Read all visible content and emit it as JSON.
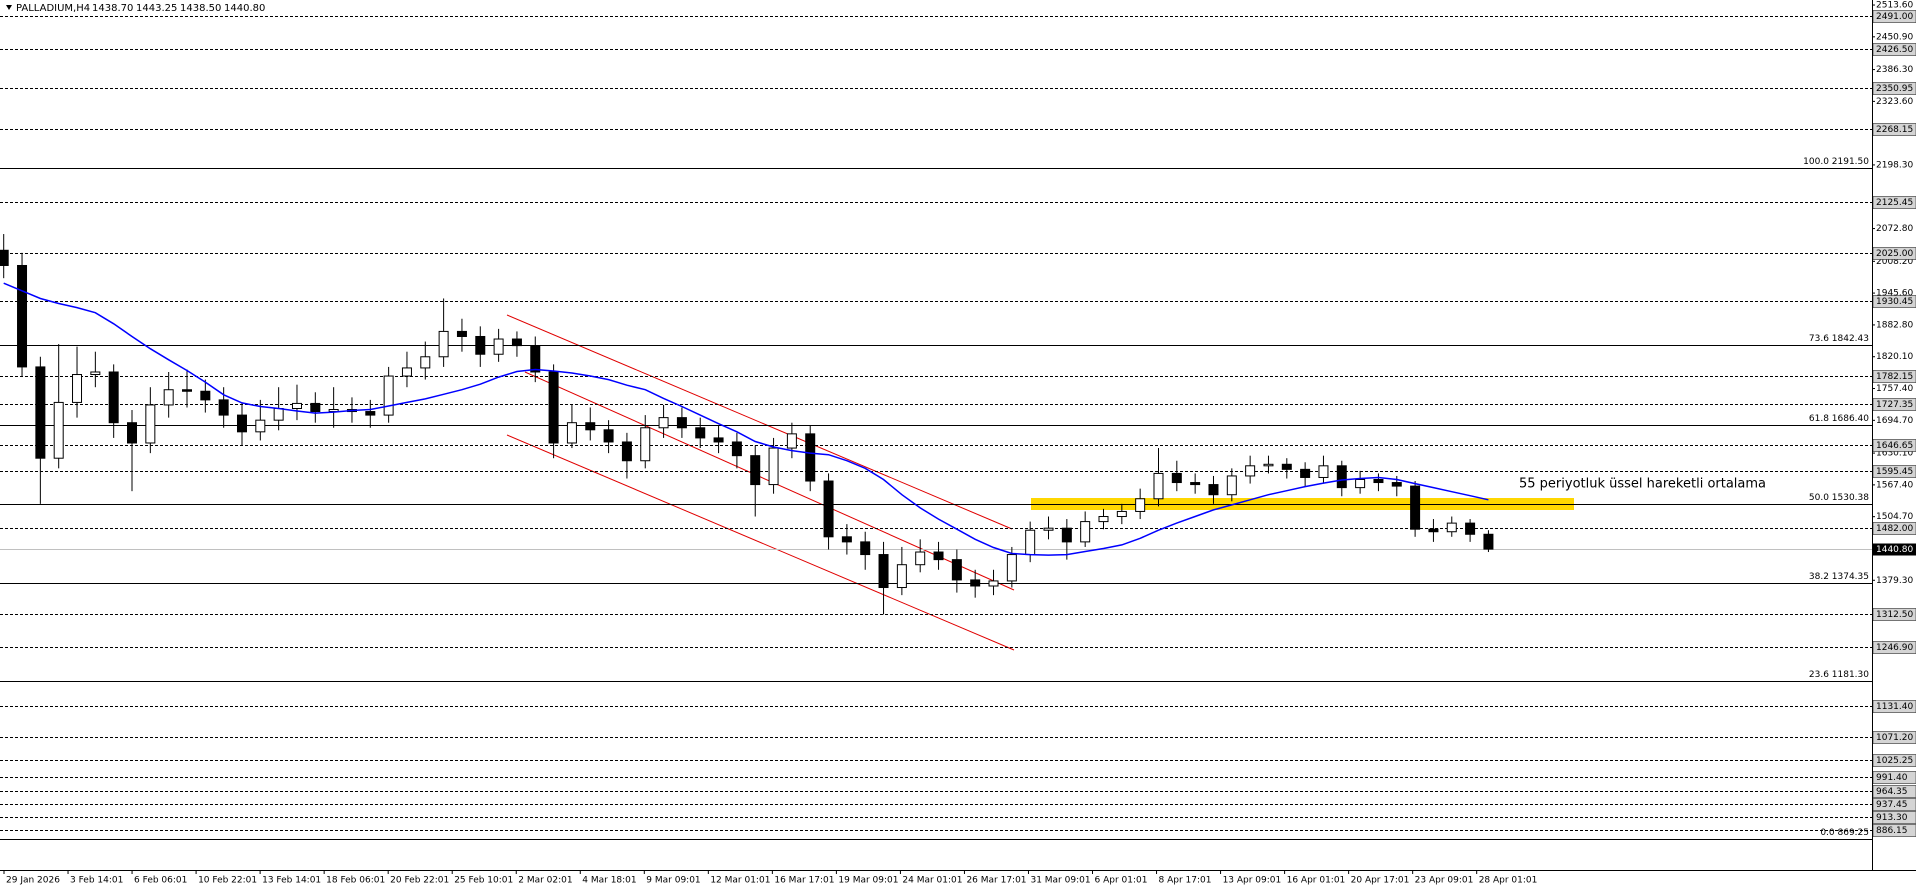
{
  "chart_data": {
    "type": "candlestick",
    "symbol": "PALLADIUM,H4",
    "last_bar": [
      {
        "value": 1438.7,
        "label": "1438.70"
      },
      {
        "value": 1443.25,
        "label": "1443.25"
      },
      {
        "value": 1438.5,
        "label": "1438.50"
      },
      {
        "value": 1440.8,
        "label": "1440.80"
      }
    ],
    "annotation": "55 periyotluk üssel hareketli ortalama",
    "ylim": [
      808,
      2523.5
    ],
    "yticks": [
      {
        "value": 2513.6,
        "label": "2513.60"
      },
      {
        "value": 2450.9,
        "label": "2450.90"
      },
      {
        "value": 2386.3,
        "label": "2386.30"
      },
      {
        "value": 2323.6,
        "label": "2323.60"
      },
      {
        "value": 2198.3,
        "label": "2198.30"
      },
      {
        "value": 2072.8,
        "label": "2072.80"
      },
      {
        "value": 2008.2,
        "label": "2008.20"
      },
      {
        "value": 1945.6,
        "label": "1945.60"
      },
      {
        "value": 1882.8,
        "label": "1882.80"
      },
      {
        "value": 1820.1,
        "label": "1820.10"
      },
      {
        "value": 1757.4,
        "label": "1757.40"
      },
      {
        "value": 1694.7,
        "label": "1694.70"
      },
      {
        "value": 1630.1,
        "label": "1630.10"
      },
      {
        "value": 1567.4,
        "label": "1567.40"
      },
      {
        "value": 1504.7,
        "label": "1504.70"
      },
      {
        "value": 1379.3,
        "label": "1379.30"
      }
    ],
    "levels": [
      {
        "value": 2491.0,
        "label": "2491.00"
      },
      {
        "value": 2426.5,
        "label": "2426.50"
      },
      {
        "value": 2350.95,
        "label": "2350.95"
      },
      {
        "value": 2268.15,
        "label": "2268.15"
      },
      {
        "value": 2125.45,
        "label": "2125.45"
      },
      {
        "value": 2025.0,
        "label": "2025.00"
      },
      {
        "value": 1930.45,
        "label": "1930.45"
      },
      {
        "value": 1782.15,
        "label": "1782.15"
      },
      {
        "value": 1727.35,
        "label": "1727.35"
      },
      {
        "value": 1646.65,
        "label": "1646.65"
      },
      {
        "value": 1595.45,
        "label": "1595.45"
      },
      {
        "value": 1482.0,
        "label": "1482.00"
      },
      {
        "value": 1312.5,
        "label": "1312.50"
      },
      {
        "value": 1246.9,
        "label": "1246.90"
      },
      {
        "value": 1131.4,
        "label": "1131.40"
      },
      {
        "value": 1071.2,
        "label": "1071.20"
      },
      {
        "value": 1025.25,
        "label": "1025.25"
      },
      {
        "value": 991.4,
        "label": "991.40"
      },
      {
        "value": 964.35,
        "label": "964.35"
      },
      {
        "value": 937.45,
        "label": "937.45"
      },
      {
        "value": 913.3,
        "label": "913.30"
      },
      {
        "value": 886.15,
        "label": "886.15"
      }
    ],
    "fib_levels": [
      {
        "value": 2191.5,
        "label": "100.0 2191.50"
      },
      {
        "value": 1842.43,
        "label": "73.6 1842.43"
      },
      {
        "value": 1686.4,
        "label": "61.8 1686.40"
      },
      {
        "value": 1530.38,
        "label": "50.0 1530.38"
      },
      {
        "value": 1374.35,
        "label": "38.2 1374.35"
      },
      {
        "value": 1181.3,
        "label": "23.6 1181.30"
      },
      {
        "value": 869.25,
        "label": "0.0 869.25"
      }
    ],
    "current_price": {
      "value": 1440.8,
      "label": "1440.80"
    },
    "x_labels": [
      "29 Jan 2026",
      "3 Feb 14:01",
      "6 Feb 06:01",
      "10 Feb 22:01",
      "13 Feb 14:01",
      "18 Feb 06:01",
      "20 Feb 22:01",
      "25 Feb 10:01",
      "2 Mar 02:01",
      "4 Mar 18:01",
      "9 Mar 09:01",
      "12 Mar 01:01",
      "16 Mar 17:01",
      "19 Mar 09:01",
      "24 Mar 01:01",
      "26 Mar 17:01",
      "31 Mar 09:01",
      "6 Apr 01:01",
      "8 Apr 17:01",
      "13 Apr 09:01",
      "16 Apr 01:01",
      "20 Apr 17:01",
      "23 Apr 09:01",
      "28 Apr 01:01"
    ],
    "candles": {
      "open": [
        2030,
        2000,
        1800,
        1620,
        1730,
        1785,
        1790,
        1690,
        1650,
        1725,
        1755,
        1752,
        1735,
        1705,
        1672,
        1695,
        1718,
        1728,
        1712,
        1716,
        1712,
        1705,
        1782,
        1798,
        1820,
        1870,
        1860,
        1825,
        1855,
        1842,
        1790,
        1650,
        1690,
        1676,
        1652,
        1615,
        1680,
        1700,
        1680,
        1660,
        1652,
        1625,
        1568,
        1640,
        1668,
        1575,
        1465,
        1455,
        1430,
        1365,
        1410,
        1435,
        1420,
        1380,
        1368,
        1378,
        1430,
        1478,
        1482,
        1455,
        1495,
        1505,
        1515,
        1540,
        1590,
        1572,
        1568,
        1548,
        1585,
        1605,
        1608,
        1598,
        1582,
        1605,
        1562,
        1578,
        1572,
        1565,
        1480,
        1475,
        1492,
        1470
      ],
      "high": [
        2062,
        2025,
        1820,
        1845,
        1840,
        1830,
        1805,
        1715,
        1760,
        1790,
        1795,
        1775,
        1760,
        1730,
        1735,
        1760,
        1765,
        1750,
        1760,
        1740,
        1735,
        1800,
        1830,
        1850,
        1935,
        1895,
        1880,
        1875,
        1870,
        1860,
        1805,
        1725,
        1720,
        1695,
        1670,
        1705,
        1725,
        1720,
        1700,
        1685,
        1670,
        1645,
        1660,
        1690,
        1685,
        1590,
        1490,
        1475,
        1455,
        1445,
        1460,
        1455,
        1440,
        1400,
        1400,
        1445,
        1495,
        1505,
        1500,
        1515,
        1520,
        1530,
        1560,
        1640,
        1615,
        1590,
        1585,
        1600,
        1625,
        1625,
        1620,
        1612,
        1625,
        1615,
        1595,
        1590,
        1585,
        1575,
        1500,
        1505,
        1500,
        1478
      ],
      "low": [
        1975,
        1780,
        1530,
        1600,
        1700,
        1760,
        1660,
        1555,
        1630,
        1700,
        1720,
        1710,
        1680,
        1645,
        1655,
        1675,
        1695,
        1690,
        1680,
        1690,
        1680,
        1690,
        1760,
        1775,
        1800,
        1830,
        1800,
        1810,
        1820,
        1770,
        1620,
        1640,
        1655,
        1630,
        1580,
        1600,
        1660,
        1660,
        1640,
        1630,
        1600,
        1505,
        1550,
        1620,
        1555,
        1440,
        1430,
        1400,
        1312,
        1350,
        1395,
        1400,
        1355,
        1345,
        1350,
        1365,
        1415,
        1460,
        1420,
        1445,
        1480,
        1490,
        1500,
        1525,
        1555,
        1550,
        1530,
        1535,
        1570,
        1590,
        1580,
        1565,
        1570,
        1545,
        1550,
        1555,
        1545,
        1465,
        1455,
        1465,
        1455,
        1435
      ],
      "close": [
        2000,
        1800,
        1620,
        1730,
        1785,
        1790,
        1690,
        1650,
        1725,
        1755,
        1752,
        1735,
        1705,
        1672,
        1695,
        1718,
        1728,
        1712,
        1716,
        1712,
        1705,
        1782,
        1798,
        1820,
        1870,
        1860,
        1825,
        1855,
        1842,
        1790,
        1650,
        1690,
        1676,
        1652,
        1615,
        1680,
        1700,
        1680,
        1660,
        1652,
        1625,
        1568,
        1640,
        1668,
        1575,
        1465,
        1455,
        1430,
        1365,
        1410,
        1435,
        1420,
        1380,
        1368,
        1378,
        1430,
        1478,
        1482,
        1455,
        1495,
        1505,
        1515,
        1540,
        1590,
        1572,
        1568,
        1548,
        1585,
        1605,
        1608,
        1598,
        1582,
        1605,
        1562,
        1578,
        1572,
        1565,
        1480,
        1475,
        1492,
        1470,
        1440.8
      ]
    },
    "ema": {
      "color": "#0000ff",
      "values": [
        1965,
        1950,
        1935,
        1925,
        1917,
        1907,
        1885,
        1860,
        1836,
        1814,
        1793,
        1770,
        1745,
        1729,
        1722,
        1718,
        1713,
        1709,
        1711,
        1714,
        1716,
        1723,
        1730,
        1737,
        1746,
        1755,
        1766,
        1780,
        1791,
        1795,
        1792,
        1788,
        1782,
        1775,
        1764,
        1755,
        1738,
        1722,
        1705,
        1688,
        1672,
        1653,
        1642,
        1635,
        1630,
        1627,
        1615,
        1600,
        1578,
        1548,
        1522,
        1500,
        1480,
        1460,
        1444,
        1432,
        1430,
        1429,
        1430,
        1436,
        1442,
        1449,
        1462,
        1478,
        1492,
        1505,
        1518,
        1528,
        1538,
        1548,
        1556,
        1564,
        1571,
        1577,
        1580,
        1582,
        1578,
        1570,
        1562,
        1554,
        1546,
        1538
      ]
    }
  }
}
